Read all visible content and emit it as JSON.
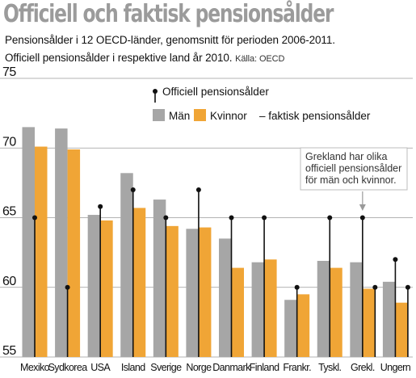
{
  "header": {
    "title": "Officiell och faktisk pensionsålder",
    "subtitle_line1": "Pensionsålder i 12 OECD-länder, genomsnitt för perioden 2006-2011.",
    "subtitle_line2": "Officiell pensionsålder i respektive land år 2010.",
    "source": "Källa: OECD"
  },
  "colors": {
    "men_bar": "#a6a6a6",
    "women_bar": "#f0a536",
    "official_marker": "#111111",
    "annotation_box": "#ffffff",
    "annotation_border": "#bdbdbd"
  },
  "chart_data": {
    "type": "bar",
    "categories": [
      "Mexiko",
      "Sydkorea",
      "USA",
      "Island",
      "Sverige",
      "Norge",
      "Danmark",
      "Finland",
      "Frankr.",
      "Tyskl.",
      "Grekl.",
      "Ungern"
    ],
    "series": [
      {
        "name": "Män",
        "values": [
          71.5,
          71.4,
          65.2,
          68.2,
          66.3,
          64.2,
          63.5,
          61.8,
          59.1,
          61.9,
          61.8,
          60.4
        ]
      },
      {
        "name": "Kvinnor – faktisk pensionsålder",
        "values": [
          70.1,
          69.9,
          64.8,
          65.7,
          64.4,
          64.3,
          61.4,
          62.0,
          59.5,
          61.4,
          59.9,
          58.9
        ]
      }
    ],
    "official": [
      {
        "name": "Officiell pensionsålder",
        "values": [
          [
            65
          ],
          [
            60
          ],
          [
            65.8
          ],
          [
            67
          ],
          [
            65
          ],
          [
            67
          ],
          [
            65
          ],
          [
            65
          ],
          [
            60
          ],
          [
            65
          ],
          [
            65,
            60
          ],
          [
            62,
            60
          ]
        ]
      }
    ],
    "ylim": [
      55,
      75
    ],
    "yticks": [
      55,
      60,
      65,
      70,
      75
    ],
    "grid": true,
    "legend": {
      "official_label": "Officiell pensionsålder",
      "men_label": "Män",
      "women_label": "Kvinnor",
      "women_suffix": "– faktisk pensionsålder"
    },
    "annotation": {
      "lines": [
        "Grekland har olika",
        "officiell pensionsålder",
        "för män och kvinnor."
      ],
      "target": "Grekl."
    }
  }
}
